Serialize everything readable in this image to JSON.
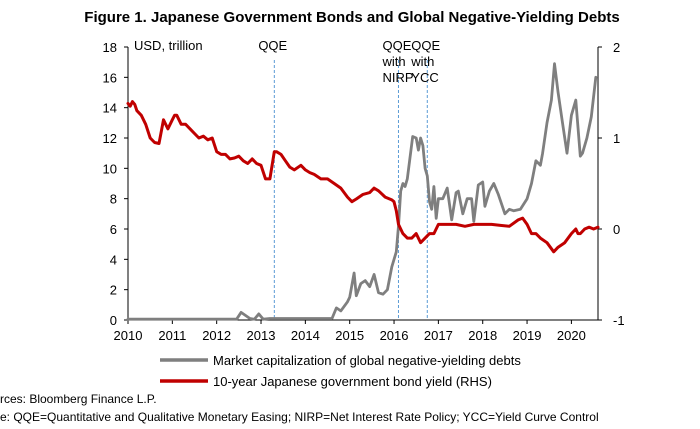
{
  "chart_data": {
    "type": "line",
    "title": "Figure 1. Japanese Government Bonds and Global Negative-Yielding Debts",
    "ylabel_left": "USD, trillion",
    "ylim_left": [
      0,
      18
    ],
    "yticks_left": [
      "0",
      "2",
      "4",
      "6",
      "8",
      "10",
      "12",
      "14",
      "16",
      "18"
    ],
    "ylim_right": [
      -1,
      2
    ],
    "yticks_right": [
      "-1",
      "0",
      "1",
      "2"
    ],
    "xlim": [
      2010,
      2020.6
    ],
    "xticks": [
      "2010",
      "2011",
      "2012",
      "2013",
      "2014",
      "2015",
      "2016",
      "2017",
      "2018",
      "2019",
      "2020"
    ],
    "annotations": [
      {
        "x": 2013.3,
        "lines": [
          "QQE"
        ]
      },
      {
        "x": 2016.1,
        "lines": [
          "QQE",
          "with",
          "NIRP"
        ]
      },
      {
        "x": 2016.75,
        "lines": [
          "QQE",
          "with",
          "YCC"
        ]
      }
    ],
    "series": [
      {
        "name": "Market capitalization of global negative-yielding debts",
        "axis": "left",
        "color": "#7f7f7f",
        "x": [
          2010.0,
          2012.45,
          2012.55,
          2012.75,
          2012.85,
          2012.95,
          2013.05,
          2013.2,
          2014.6,
          2014.7,
          2014.8,
          2014.9,
          2014.95,
          2015.0,
          2015.1,
          2015.15,
          2015.25,
          2015.35,
          2015.45,
          2015.55,
          2015.65,
          2015.75,
          2015.85,
          2015.95,
          2016.05,
          2016.1,
          2016.15,
          2016.2,
          2016.25,
          2016.3,
          2016.35,
          2016.42,
          2016.5,
          2016.55,
          2016.6,
          2016.65,
          2016.7,
          2016.75,
          2016.8,
          2016.85,
          2016.9,
          2016.95,
          2017.0,
          2017.1,
          2017.2,
          2017.3,
          2017.4,
          2017.45,
          2017.55,
          2017.65,
          2017.75,
          2017.8,
          2017.9,
          2018.0,
          2018.05,
          2018.15,
          2018.25,
          2018.35,
          2018.5,
          2018.6,
          2018.7,
          2018.85,
          2019.0,
          2019.1,
          2019.2,
          2019.3,
          2019.35,
          2019.45,
          2019.55,
          2019.62,
          2019.7,
          2019.8,
          2019.9,
          2020.0,
          2020.1,
          2020.2,
          2020.25,
          2020.35,
          2020.45,
          2020.55
        ],
        "values": [
          0.05,
          0.05,
          0.5,
          0.1,
          0.05,
          0.4,
          0.05,
          0.1,
          0.1,
          0.8,
          0.6,
          1.0,
          1.2,
          1.5,
          3.1,
          1.6,
          2.4,
          2.6,
          2.2,
          3.0,
          1.8,
          1.7,
          2.0,
          3.5,
          4.5,
          6.2,
          8.5,
          9.0,
          8.8,
          9.3,
          10.5,
          12.1,
          12.0,
          11.2,
          12.0,
          11.5,
          10.0,
          9.5,
          7.8,
          7.3,
          8.8,
          6.7,
          8.0,
          8.0,
          8.7,
          6.6,
          8.4,
          8.5,
          7.0,
          8.0,
          8.0,
          6.5,
          8.9,
          9.1,
          7.5,
          8.5,
          9.0,
          8.3,
          7.0,
          7.3,
          7.2,
          7.3,
          8.0,
          9.0,
          10.5,
          10.2,
          11.0,
          13.0,
          14.5,
          16.9,
          15.0,
          13.0,
          11.0,
          13.5,
          14.5,
          10.8,
          11.0,
          12.0,
          13.4,
          16.0
        ]
      },
      {
        "name": "10-year Japanese government bond yield (RHS)",
        "axis": "right",
        "color": "#c00000",
        "x": [
          2010.0,
          2010.05,
          2010.1,
          2010.15,
          2010.2,
          2010.3,
          2010.4,
          2010.5,
          2010.6,
          2010.7,
          2010.8,
          2010.9,
          2011.0,
          2011.05,
          2011.1,
          2011.2,
          2011.3,
          2011.4,
          2011.5,
          2011.6,
          2011.7,
          2011.8,
          2011.9,
          2012.0,
          2012.1,
          2012.2,
          2012.3,
          2012.4,
          2012.5,
          2012.6,
          2012.7,
          2012.8,
          2012.9,
          2013.0,
          2013.1,
          2013.2,
          2013.3,
          2013.35,
          2013.45,
          2013.55,
          2013.65,
          2013.75,
          2013.9,
          2014.0,
          2014.1,
          2014.2,
          2014.35,
          2014.5,
          2014.65,
          2014.8,
          2014.95,
          2015.05,
          2015.15,
          2015.3,
          2015.45,
          2015.55,
          2015.65,
          2015.8,
          2015.95,
          2016.0,
          2016.05,
          2016.1,
          2016.2,
          2016.3,
          2016.4,
          2016.5,
          2016.6,
          2016.7,
          2016.8,
          2016.9,
          2017.0,
          2017.2,
          2017.4,
          2017.6,
          2017.8,
          2018.0,
          2018.2,
          2018.4,
          2018.6,
          2018.8,
          2018.9,
          2019.0,
          2019.1,
          2019.2,
          2019.3,
          2019.45,
          2019.6,
          2019.7,
          2019.85,
          2020.0,
          2020.1,
          2020.15,
          2020.2,
          2020.3,
          2020.4,
          2020.5,
          2020.6
        ],
        "values": [
          1.38,
          1.35,
          1.4,
          1.37,
          1.3,
          1.25,
          1.15,
          1.0,
          0.95,
          0.94,
          1.2,
          1.1,
          1.2,
          1.25,
          1.25,
          1.15,
          1.15,
          1.1,
          1.05,
          1.0,
          1.02,
          0.98,
          1.0,
          0.85,
          0.82,
          0.82,
          0.77,
          0.78,
          0.8,
          0.75,
          0.72,
          0.77,
          0.72,
          0.7,
          0.55,
          0.55,
          0.85,
          0.85,
          0.82,
          0.75,
          0.68,
          0.65,
          0.7,
          0.65,
          0.62,
          0.6,
          0.55,
          0.55,
          0.5,
          0.45,
          0.35,
          0.3,
          0.33,
          0.38,
          0.4,
          0.45,
          0.42,
          0.35,
          0.32,
          0.3,
          0.2,
          0.05,
          -0.05,
          -0.1,
          -0.1,
          -0.05,
          -0.15,
          -0.1,
          -0.05,
          -0.05,
          0.05,
          0.05,
          0.05,
          0.03,
          0.05,
          0.05,
          0.05,
          0.04,
          0.03,
          0.1,
          0.12,
          0.05,
          -0.05,
          -0.05,
          -0.1,
          -0.15,
          -0.25,
          -0.2,
          -0.15,
          -0.05,
          0.0,
          -0.05,
          -0.05,
          0.0,
          0.02,
          0.0,
          0.02
        ]
      }
    ],
    "source_note": "rces: Bloomberg Finance L.P.",
    "footnote": "e: QQE=Quantitative and Qualitative Monetary Easing; NIRP=Net Interest Rate Policy; YCC=Yield Curve Control"
  }
}
